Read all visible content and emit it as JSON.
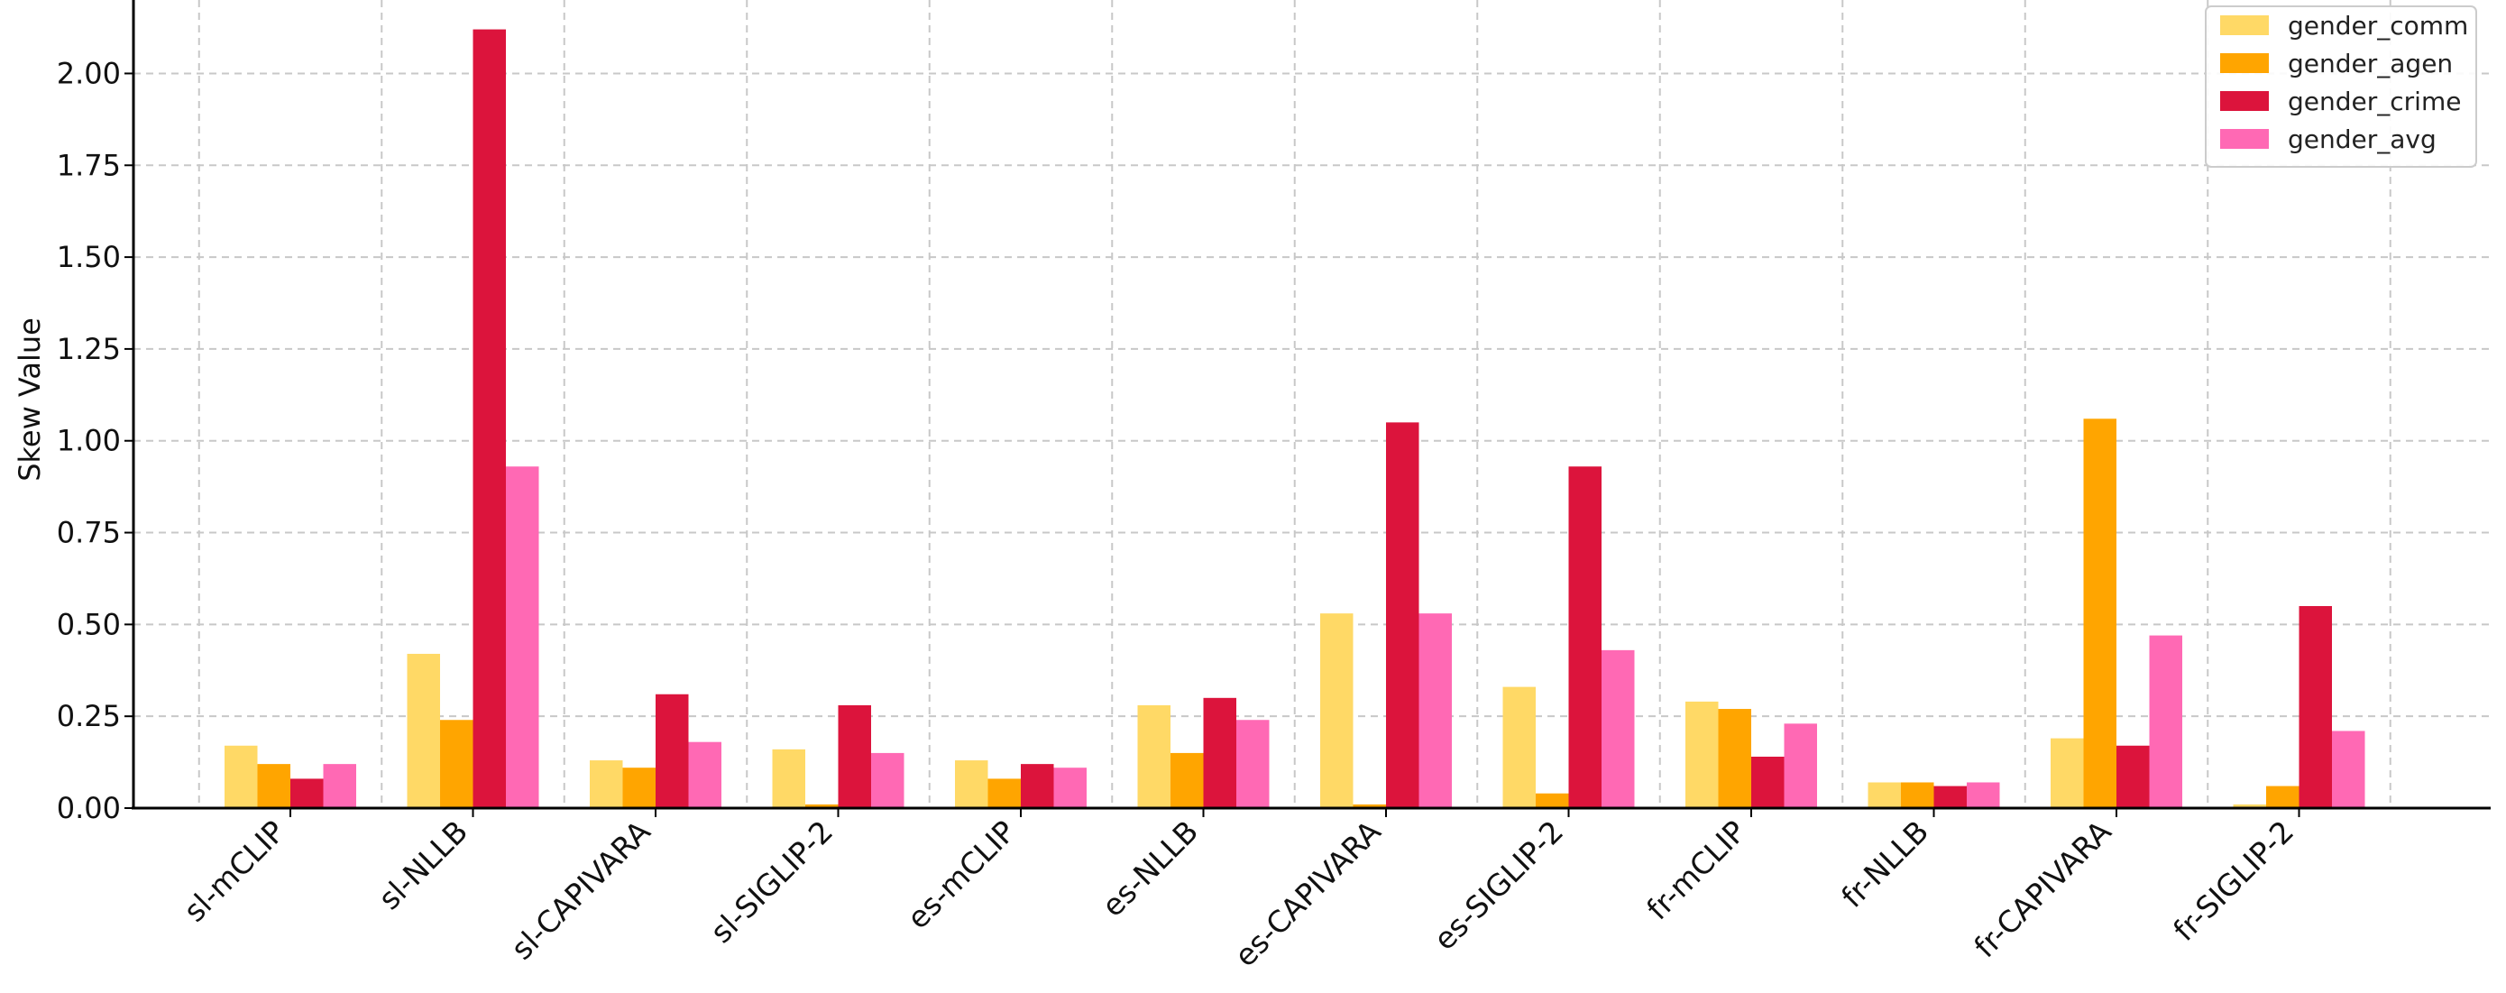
{
  "chart_data": {
    "type": "bar",
    "title": "",
    "xlabel": "",
    "ylabel": "Skew Value",
    "ylim": [
      0,
      2.2
    ],
    "yticks": [
      "0.00",
      "0.25",
      "0.50",
      "0.75",
      "1.00",
      "1.25",
      "1.50",
      "1.75",
      "2.00"
    ],
    "grid": true,
    "legend_position": "top-right",
    "categories": [
      "sl-mCLIP",
      "sl-NLLB",
      "sl-CAPIVARA",
      "sl-SIGLIP-2",
      "es-mCLIP",
      "es-NLLB",
      "es-CAPIVARA",
      "es-SIGLIP-2",
      "fr-mCLIP",
      "fr-NLLB",
      "fr-CAPIVARA",
      "fr-SIGLIP-2"
    ],
    "series": [
      {
        "name": "gender_comm",
        "color": "#FFD966",
        "values": [
          0.17,
          0.42,
          0.13,
          0.16,
          0.13,
          0.28,
          0.53,
          0.33,
          0.29,
          0.07,
          0.19,
          0.01
        ]
      },
      {
        "name": "gender_agen",
        "color": "#FFA500",
        "values": [
          0.12,
          0.24,
          0.11,
          0.01,
          0.08,
          0.15,
          0.01,
          0.04,
          0.27,
          0.07,
          1.06,
          0.06
        ]
      },
      {
        "name": "gender_crime",
        "color": "#DC143C",
        "values": [
          0.08,
          2.12,
          0.31,
          0.28,
          0.12,
          0.3,
          1.05,
          0.93,
          0.14,
          0.06,
          0.17,
          0.55
        ]
      },
      {
        "name": "gender_avg",
        "color": "#FF69B4",
        "values": [
          0.12,
          0.93,
          0.18,
          0.15,
          0.11,
          0.24,
          0.53,
          0.43,
          0.23,
          0.07,
          0.47,
          0.21
        ]
      }
    ]
  }
}
